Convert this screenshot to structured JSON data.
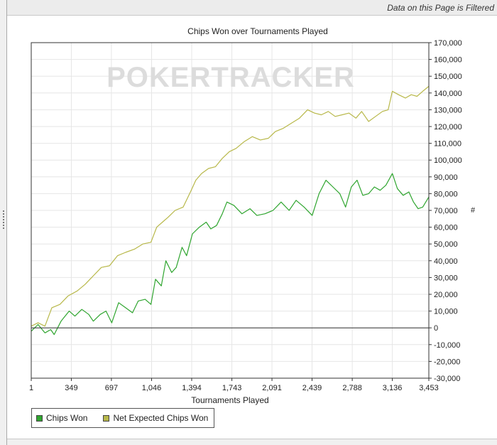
{
  "banner": {
    "filter_notice": "Data on this Page is Filtered"
  },
  "watermark": {
    "text": "POKERTRACKER"
  },
  "side_marker": {
    "text": "#"
  },
  "icons": {
    "splitter": "grip-dots-icon"
  },
  "colors": {
    "chips_won": "#2fa52f",
    "net_expected": "#b8b84a",
    "zero_line": "#333333",
    "grid": "#e6e6e6",
    "watermark": "#dcdcdc"
  },
  "chart_data": {
    "type": "line",
    "title": "Chips Won over Tournaments Played",
    "xlabel": "Tournaments Played",
    "ylabel": "",
    "xlim": [
      1,
      3453
    ],
    "ylim": [
      -30000,
      170000
    ],
    "x_ticks": [
      1,
      349,
      697,
      1046,
      1394,
      1743,
      2091,
      2439,
      2788,
      3136,
      3453
    ],
    "x_tick_labels": [
      "1",
      "349",
      "697",
      "1,046",
      "1,394",
      "1,743",
      "2,091",
      "2,439",
      "2,788",
      "3,136",
      "3,453"
    ],
    "y_ticks": [
      -30000,
      -20000,
      -10000,
      0,
      10000,
      20000,
      30000,
      40000,
      50000,
      60000,
      70000,
      80000,
      90000,
      100000,
      110000,
      120000,
      130000,
      140000,
      150000,
      160000,
      170000
    ],
    "y_tick_labels": [
      "-30,000",
      "-20,000",
      "-10,000",
      "0",
      "10,000",
      "20,000",
      "30,000",
      "40,000",
      "50,000",
      "60,000",
      "70,000",
      "80,000",
      "90,000",
      "100,000",
      "110,000",
      "120,000",
      "130,000",
      "140,000",
      "150,000",
      "160,000",
      "170,000"
    ],
    "y_axis_side": "right",
    "grid": true,
    "legend_position": "bottom-left",
    "series": [
      {
        "name": "Chips Won",
        "x": [
          1,
          60,
          120,
          170,
          200,
          260,
          330,
          380,
          440,
          500,
          540,
          600,
          650,
          700,
          760,
          820,
          880,
          930,
          990,
          1040,
          1080,
          1130,
          1170,
          1220,
          1260,
          1310,
          1350,
          1400,
          1460,
          1520,
          1560,
          1610,
          1660,
          1700,
          1760,
          1830,
          1900,
          1960,
          2030,
          2100,
          2170,
          2240,
          2300,
          2370,
          2440,
          2500,
          2560,
          2620,
          2680,
          2730,
          2780,
          2830,
          2880,
          2930,
          2980,
          3030,
          3080,
          3136,
          3180,
          3230,
          3280,
          3320,
          3360,
          3400,
          3453
        ],
        "y": [
          -2000,
          2000,
          -3000,
          -1000,
          -4000,
          4000,
          10000,
          7000,
          11000,
          8000,
          4000,
          8000,
          10000,
          3000,
          15000,
          12000,
          9000,
          16000,
          17000,
          14000,
          29000,
          25000,
          40000,
          33000,
          36000,
          48000,
          43000,
          56000,
          60000,
          63000,
          59000,
          61000,
          68000,
          75000,
          73000,
          68000,
          71000,
          67000,
          68000,
          70000,
          75000,
          70000,
          76000,
          72000,
          67000,
          80000,
          88000,
          84000,
          80000,
          72000,
          84000,
          88000,
          79000,
          80000,
          84000,
          82000,
          85000,
          92000,
          83000,
          79000,
          81000,
          75000,
          71000,
          72000,
          78000
        ]
      },
      {
        "name": "Net Expected Chips Won",
        "x": [
          1,
          60,
          120,
          180,
          250,
          320,
          400,
          470,
          540,
          610,
          680,
          750,
          820,
          900,
          970,
          1040,
          1090,
          1140,
          1190,
          1250,
          1320,
          1390,
          1430,
          1480,
          1540,
          1600,
          1660,
          1720,
          1780,
          1850,
          1920,
          1990,
          2060,
          2120,
          2190,
          2260,
          2330,
          2400,
          2460,
          2520,
          2580,
          2640,
          2700,
          2760,
          2820,
          2870,
          2930,
          2990,
          3050,
          3100,
          3136,
          3190,
          3250,
          3300,
          3350,
          3400,
          3453
        ],
        "y": [
          1000,
          3000,
          1000,
          12000,
          14000,
          19000,
          22000,
          26000,
          31000,
          36000,
          37000,
          43000,
          45000,
          47000,
          50000,
          51000,
          60000,
          63000,
          66000,
          70000,
          72000,
          82000,
          88000,
          92000,
          95000,
          96000,
          101000,
          105000,
          107000,
          111000,
          114000,
          112000,
          113000,
          117000,
          119000,
          122000,
          125000,
          130000,
          128000,
          127000,
          129000,
          126000,
          127000,
          128000,
          125000,
          129000,
          123000,
          126000,
          129000,
          130000,
          141000,
          139000,
          137000,
          139000,
          138000,
          141000,
          144000
        ]
      }
    ]
  }
}
